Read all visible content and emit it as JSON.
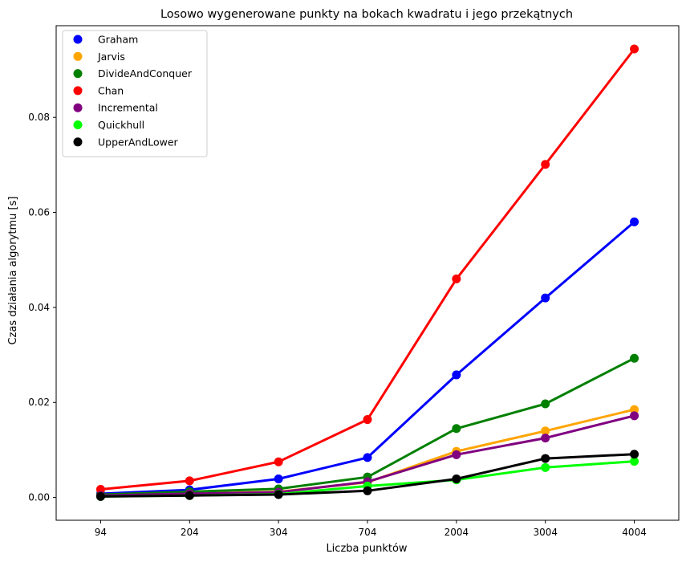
{
  "chart_data": {
    "type": "line",
    "title": "Losowo wygenerowane punkty na bokach kwadratu i jego przekątnych",
    "xlabel": "Liczba punktów",
    "ylabel": "Czas działania algorytmu [s]",
    "categories": [
      "94",
      "204",
      "304",
      "704",
      "2004",
      "3004",
      "4004"
    ],
    "ylim": [
      -0.0048,
      0.0993
    ],
    "yticks": [
      0.0,
      0.02,
      0.04,
      0.06,
      0.08
    ],
    "ytick_labels": [
      "0.00",
      "0.02",
      "0.04",
      "0.06",
      "0.08"
    ],
    "grid": false,
    "legend_position": "top-left",
    "series": [
      {
        "name": "Graham",
        "color": "#0000ff",
        "values": [
          0.0008,
          0.0016,
          0.0039,
          0.0084,
          0.0258,
          0.042,
          0.058
        ]
      },
      {
        "name": "Jarvis",
        "color": "#ffa500",
        "values": [
          0.0004,
          0.0008,
          0.0012,
          0.0032,
          0.0097,
          0.014,
          0.0185
        ]
      },
      {
        "name": "DivideAndConquer",
        "color": "#008000",
        "values": [
          0.0006,
          0.0012,
          0.0018,
          0.0043,
          0.0145,
          0.0197,
          0.0293
        ]
      },
      {
        "name": "Chan",
        "color": "#ff0000",
        "values": [
          0.0017,
          0.0035,
          0.0075,
          0.0164,
          0.046,
          0.0701,
          0.0944
        ]
      },
      {
        "name": "Incremental",
        "color": "#800080",
        "values": [
          0.0004,
          0.0008,
          0.0011,
          0.0033,
          0.009,
          0.0125,
          0.0172
        ]
      },
      {
        "name": "Quickhull",
        "color": "#00ff00",
        "values": [
          0.0002,
          0.0004,
          0.0007,
          0.0024,
          0.0037,
          0.0063,
          0.0076
        ]
      },
      {
        "name": "UpperAndLower",
        "color": "#000000",
        "values": [
          0.0002,
          0.0004,
          0.0006,
          0.0014,
          0.0039,
          0.0082,
          0.0091
        ]
      }
    ]
  }
}
